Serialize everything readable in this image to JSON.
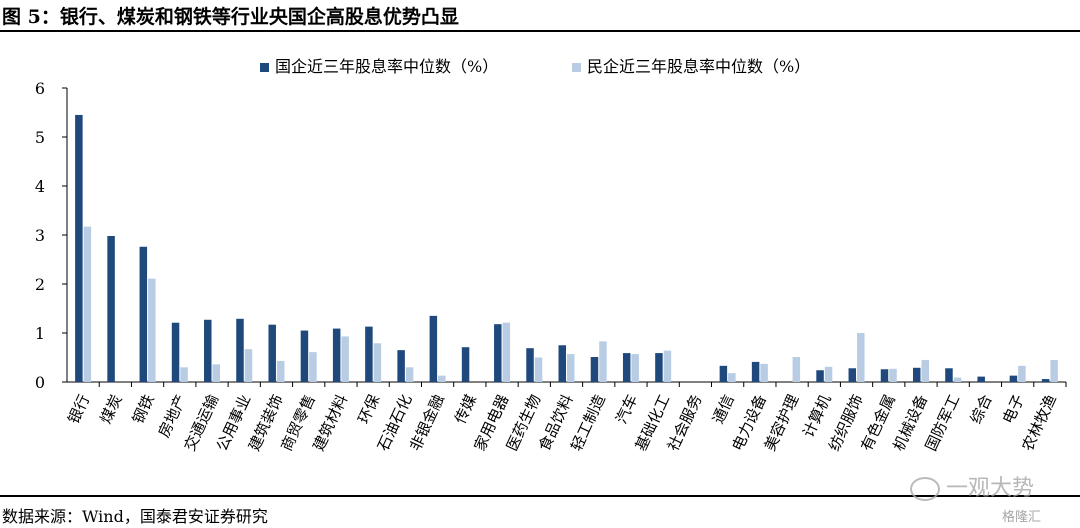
{
  "figure": {
    "title": "图 5：银行、煤炭和钢铁等行业央国企高股息优势凸显",
    "source": "数据来源：Wind，国泰君安证券研究",
    "watermark": "一观大势",
    "watermark2": "格隆汇"
  },
  "colors": {
    "soe": "#1f497d",
    "private": "#b8cce4",
    "axis": "#000000"
  },
  "chart_data": {
    "type": "bar",
    "title": "",
    "xlabel": "",
    "ylabel": "",
    "ylim": [
      0,
      6
    ],
    "yticks": [
      "0",
      "1",
      "2",
      "3",
      "4",
      "5",
      "6"
    ],
    "grid": false,
    "legend_position": "top",
    "categories": [
      "银行",
      "煤炭",
      "钢铁",
      "房地产",
      "交通运输",
      "公用事业",
      "建筑装饰",
      "商贸零售",
      "建筑材料",
      "环保",
      "石油石化",
      "非银金融",
      "传媒",
      "家用电器",
      "医药生物",
      "食品饮料",
      "轻工制造",
      "汽车",
      "基础化工",
      "社会服务",
      "通信",
      "电力设备",
      "美容护理",
      "计算机",
      "纺织服饰",
      "有色金属",
      "机械设备",
      "国防军工",
      "综合",
      "电子",
      "农林牧渔"
    ],
    "series": [
      {
        "name": "国企近三年股息率中位数（%）",
        "values": [
          5.45,
          2.98,
          2.76,
          1.21,
          1.27,
          1.29,
          1.17,
          1.05,
          1.09,
          1.13,
          0.65,
          1.35,
          0.71,
          1.18,
          0.69,
          0.75,
          0.51,
          0.59,
          0.59,
          0.0,
          0.33,
          0.41,
          0.0,
          0.24,
          0.28,
          0.26,
          0.29,
          0.28,
          0.11,
          0.13,
          0.06
        ]
      },
      {
        "name": "民企近三年股息率中位数（%）",
        "values": [
          3.17,
          0.0,
          2.11,
          0.3,
          0.36,
          0.67,
          0.43,
          0.61,
          0.93,
          0.79,
          0.3,
          0.13,
          0.0,
          1.21,
          0.5,
          0.57,
          0.83,
          0.57,
          0.64,
          0.0,
          0.18,
          0.37,
          0.51,
          0.31,
          1.0,
          0.27,
          0.45,
          0.09,
          0.0,
          0.33,
          0.45
        ]
      }
    ]
  }
}
